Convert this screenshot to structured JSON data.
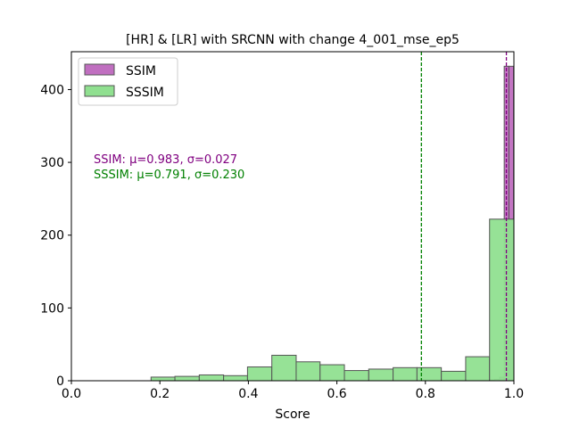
{
  "chart_data": {
    "type": "histogram",
    "title": "[HR] & [LR] with SRCNN with change 4_001_mse_ep5",
    "xlabel": "Score",
    "ylabel": "",
    "xlim": [
      0.0,
      1.0
    ],
    "ylim": [
      0,
      452
    ],
    "xticks": [
      0.0,
      0.2,
      0.4,
      0.6,
      0.8,
      1.0
    ],
    "xtick_labels": [
      "0.0",
      "0.2",
      "0.4",
      "0.6",
      "0.8",
      "1.0"
    ],
    "yticks": [
      0,
      100,
      200,
      300,
      400
    ],
    "ytick_labels": [
      "0",
      "100",
      "200",
      "300",
      "400"
    ],
    "grid": false,
    "legend_position": "top-left",
    "series": [
      {
        "name": "SSIM",
        "color": "#c06fc0",
        "edge": "#555555",
        "bins": [
          {
            "x0": 0.946,
            "x1": 0.9567,
            "count": 1
          },
          {
            "x0": 0.9567,
            "x1": 0.9674,
            "count": 2
          },
          {
            "x0": 0.9674,
            "x1": 0.9781,
            "count": 5
          },
          {
            "x0": 0.9781,
            "x1": 0.9888,
            "count": 432
          },
          {
            "x0": 0.9888,
            "x1": 0.9995,
            "count": 432
          }
        ],
        "mean": 0.983,
        "std": 0.027,
        "mean_line_color": "#800080"
      },
      {
        "name": "SSSIM",
        "color": "#90e090",
        "edge": "#555555",
        "bins": [
          {
            "x0": 0.18,
            "x1": 0.234,
            "count": 5
          },
          {
            "x0": 0.234,
            "x1": 0.289,
            "count": 6
          },
          {
            "x0": 0.289,
            "x1": 0.344,
            "count": 8
          },
          {
            "x0": 0.344,
            "x1": 0.398,
            "count": 7
          },
          {
            "x0": 0.398,
            "x1": 0.453,
            "count": 19
          },
          {
            "x0": 0.453,
            "x1": 0.508,
            "count": 35
          },
          {
            "x0": 0.508,
            "x1": 0.562,
            "count": 26
          },
          {
            "x0": 0.562,
            "x1": 0.617,
            "count": 22
          },
          {
            "x0": 0.617,
            "x1": 0.672,
            "count": 14
          },
          {
            "x0": 0.672,
            "x1": 0.727,
            "count": 16
          },
          {
            "x0": 0.727,
            "x1": 0.781,
            "count": 18
          },
          {
            "x0": 0.781,
            "x1": 0.836,
            "count": 18
          },
          {
            "x0": 0.836,
            "x1": 0.891,
            "count": 13
          },
          {
            "x0": 0.891,
            "x1": 0.945,
            "count": 33
          },
          {
            "x0": 0.945,
            "x1": 1.0,
            "count": 222
          }
        ],
        "mean": 0.791,
        "std": 0.23,
        "mean_line_color": "#008000"
      }
    ],
    "annotations": [
      {
        "text": "SSIM: μ=0.983, σ=0.027",
        "color": "#800080"
      },
      {
        "text": "SSSIM: μ=0.791, σ=0.230",
        "color": "#008000"
      }
    ]
  }
}
